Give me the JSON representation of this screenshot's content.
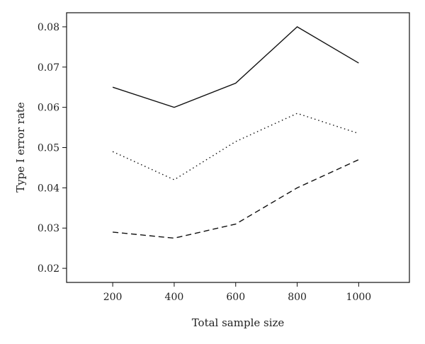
{
  "chart_data": {
    "type": "line",
    "xlabel": "Total sample size",
    "ylabel": "Type I error rate",
    "x": [
      200,
      400,
      600,
      800,
      1000
    ],
    "xlim": [
      50,
      1165
    ],
    "ylim": [
      0.0165,
      0.0835
    ],
    "xticks": [
      "200",
      "400",
      "600",
      "800",
      "1000"
    ],
    "yticks": [
      "0.02",
      "0.03",
      "0.04",
      "0.05",
      "0.06",
      "0.07",
      "0.08"
    ],
    "grid": false,
    "legend": "none",
    "series": [
      {
        "style": "solid",
        "values": [
          0.065,
          0.06,
          0.066,
          0.08,
          0.071
        ]
      },
      {
        "style": "dotted",
        "values": [
          0.049,
          0.042,
          0.0515,
          0.0585,
          0.0535
        ]
      },
      {
        "style": "dashed",
        "values": [
          0.029,
          0.0275,
          0.031,
          0.04,
          0.047
        ]
      }
    ],
    "line_color": "#111111"
  }
}
